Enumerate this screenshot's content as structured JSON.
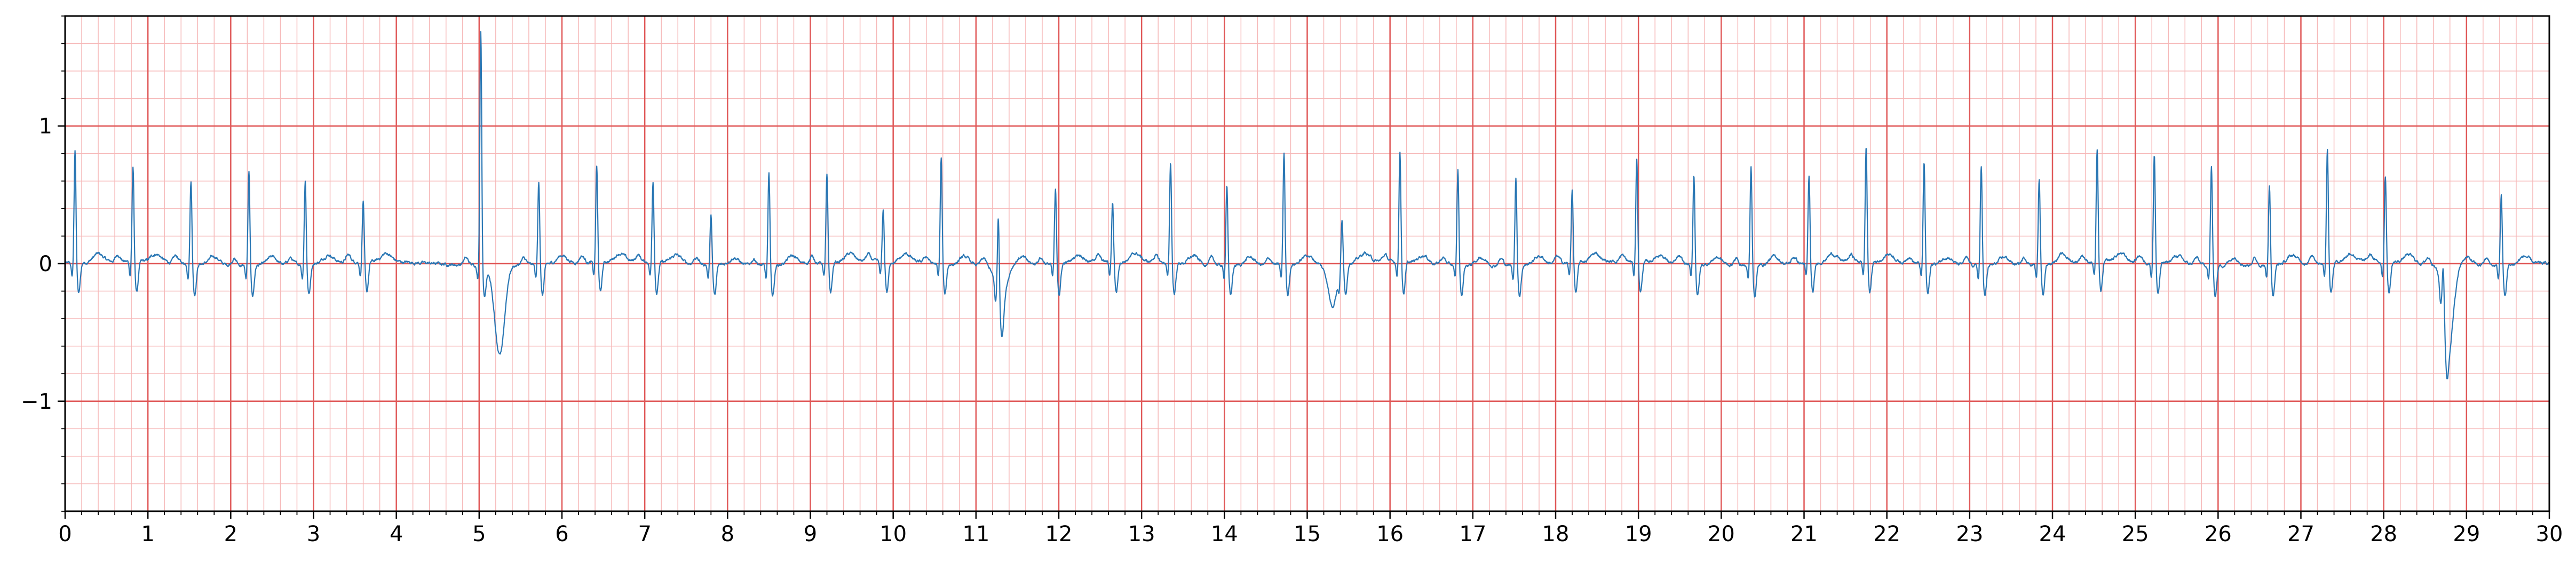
{
  "chart_data": {
    "type": "line",
    "title": "",
    "xlabel": "",
    "ylabel": "",
    "xlim": [
      0,
      30
    ],
    "ylim": [
      -1.8,
      1.8
    ],
    "x_ticks": [
      0,
      1,
      2,
      3,
      4,
      5,
      6,
      7,
      8,
      9,
      10,
      11,
      12,
      13,
      14,
      15,
      16,
      17,
      18,
      19,
      20,
      21,
      22,
      23,
      24,
      25,
      26,
      27,
      28,
      29,
      30
    ],
    "x_tick_labels": [
      "0",
      "1",
      "2",
      "3",
      "4",
      "5",
      "6",
      "7",
      "8",
      "9",
      "10",
      "11",
      "12",
      "13",
      "14",
      "15",
      "16",
      "17",
      "18",
      "19",
      "20",
      "21",
      "22",
      "23",
      "24",
      "25",
      "26",
      "27",
      "28",
      "29",
      "30"
    ],
    "y_ticks": [
      -1,
      0,
      1
    ],
    "y_tick_labels": [
      "−1",
      "0",
      "1"
    ],
    "grid": true,
    "grid_major_x_step": 1,
    "grid_minor_x_step": 0.2,
    "grid_major_y_step": 1,
    "grid_minor_y_step": 0.2,
    "grid_major_color": "#e05858",
    "grid_minor_color": "#f6b8b8",
    "line_color": "#2a77b4",
    "series": [
      {
        "name": "",
        "beats": [
          {
            "t": 0.12,
            "amp": 0.82
          },
          {
            "t": 0.82,
            "amp": 0.7
          },
          {
            "t": 1.52,
            "amp": 0.62
          },
          {
            "t": 2.22,
            "amp": 0.68
          },
          {
            "t": 2.9,
            "amp": 0.62
          },
          {
            "t": 3.6,
            "amp": 0.44
          },
          {
            "t": 5.02,
            "amp": 1.72
          },
          {
            "t": 5.72,
            "amp": 0.62
          },
          {
            "t": 6.42,
            "amp": 0.7
          },
          {
            "t": 7.1,
            "amp": 0.6
          },
          {
            "t": 7.8,
            "amp": 0.38
          },
          {
            "t": 8.5,
            "amp": 0.68
          },
          {
            "t": 9.2,
            "amp": 0.64
          },
          {
            "t": 9.88,
            "amp": 0.38
          },
          {
            "t": 10.58,
            "amp": 0.78
          },
          {
            "t": 11.27,
            "amp": 0.62
          },
          {
            "t": 11.96,
            "amp": 0.54
          },
          {
            "t": 12.65,
            "amp": 0.44
          },
          {
            "t": 13.35,
            "amp": 0.74
          },
          {
            "t": 14.03,
            "amp": 0.6
          },
          {
            "t": 14.72,
            "amp": 0.82
          },
          {
            "t": 15.42,
            "amp": 0.36
          },
          {
            "t": 16.12,
            "amp": 0.82
          },
          {
            "t": 16.82,
            "amp": 0.7
          },
          {
            "t": 17.52,
            "amp": 0.64
          },
          {
            "t": 18.2,
            "amp": 0.54
          },
          {
            "t": 18.98,
            "amp": 0.76
          },
          {
            "t": 19.67,
            "amp": 0.66
          },
          {
            "t": 20.36,
            "amp": 0.74
          },
          {
            "t": 21.06,
            "amp": 0.64
          },
          {
            "t": 21.75,
            "amp": 0.84
          },
          {
            "t": 22.45,
            "amp": 0.74
          },
          {
            "t": 23.14,
            "amp": 0.72
          },
          {
            "t": 23.84,
            "amp": 0.62
          },
          {
            "t": 24.54,
            "amp": 0.82
          },
          {
            "t": 25.23,
            "amp": 0.8
          },
          {
            "t": 25.92,
            "amp": 0.72
          },
          {
            "t": 26.62,
            "amp": 0.58
          },
          {
            "t": 27.32,
            "amp": 0.84
          },
          {
            "t": 28.02,
            "amp": 0.64
          },
          {
            "t": 28.72,
            "amp": 0.36
          },
          {
            "t": 29.42,
            "amp": 0.52
          }
        ],
        "deep_troughs": [
          {
            "t": 5.25,
            "amp": -0.7
          },
          {
            "t": 28.78,
            "amp": -0.62
          },
          {
            "t": 15.3,
            "amp": -0.32
          },
          {
            "t": 11.3,
            "amp": -0.3
          }
        ]
      }
    ]
  }
}
